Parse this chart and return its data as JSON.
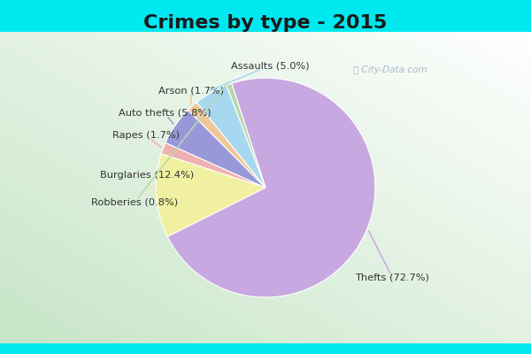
{
  "title": "Crimes by type - 2015",
  "labels": [
    "Thefts",
    "Burglaries",
    "Rapes",
    "Auto thefts",
    "Arson",
    "Assaults",
    "Robberies"
  ],
  "pct_labels": [
    "Thefts (72.7%)",
    "Burglaries (12.4%)",
    "Rapes (1.7%)",
    "Auto thefts (5.8%)",
    "Arson (1.7%)",
    "Assaults (5.0%)",
    "Robberies (0.8%)"
  ],
  "values": [
    72.7,
    12.4,
    1.7,
    5.8,
    1.7,
    5.0,
    0.8
  ],
  "colors": [
    "#c8a8e0",
    "#f0f0a0",
    "#f0b0b0",
    "#9898d8",
    "#f0c898",
    "#a8d8f0",
    "#b8d8b0"
  ],
  "title_fontsize": 16,
  "bg_cyan": "#00e8f0",
  "bg_inner": "#e0f0e8",
  "startangle": 108
}
